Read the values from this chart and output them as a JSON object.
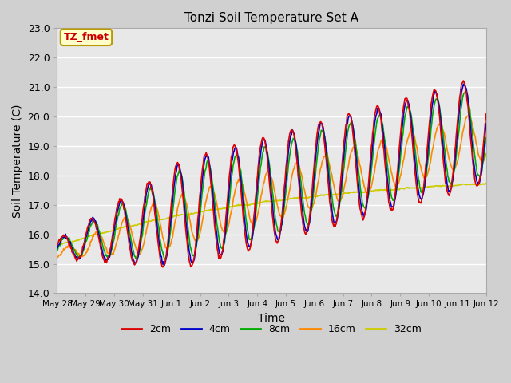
{
  "title": "Tonzi Soil Temperature Set A",
  "xlabel": "Time",
  "ylabel": "Soil Temperature (C)",
  "ylim": [
    14.0,
    23.0
  ],
  "yticks": [
    14.0,
    15.0,
    16.0,
    17.0,
    18.0,
    19.0,
    20.0,
    21.0,
    22.0,
    23.0
  ],
  "plot_bg_color": "#e8e8e8",
  "fig_bg_color": "#d0d0d0",
  "legend_label": "TZ_fmet",
  "legend_bg": "#ffffcc",
  "legend_border": "#bb9900",
  "series": [
    "2cm",
    "4cm",
    "8cm",
    "16cm",
    "32cm"
  ],
  "colors": [
    "#dd0000",
    "#0000cc",
    "#00aa00",
    "#ff8800",
    "#cccc00"
  ],
  "n_points": 720,
  "xtick_labels": [
    "May 28",
    "May 29",
    "May 30",
    "May 31",
    "Jun 1",
    "Jun 2",
    "Jun 3",
    "Jun 4",
    "Jun 5",
    "Jun 6",
    "Jun 7",
    "Jun 8",
    "Jun 9",
    "Jun 10",
    "Jun 11",
    "Jun 12"
  ],
  "n_days": 15
}
